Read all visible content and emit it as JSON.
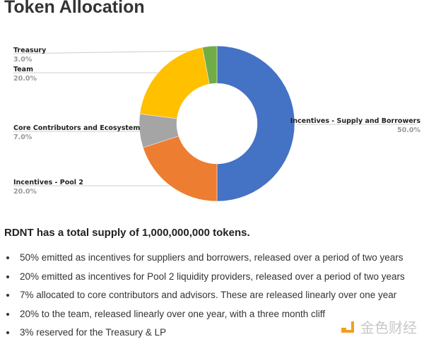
{
  "title": "Token Allocation",
  "chart_data": {
    "type": "pie",
    "variant": "donut",
    "slices": [
      {
        "label": "Incentives - Supply and Borrowers",
        "value": 50.0,
        "display": "50.0%",
        "color": "#4472C4"
      },
      {
        "label": "Incentives - Pool 2",
        "value": 20.0,
        "display": "20.0%",
        "color": "#ED7D31"
      },
      {
        "label": "Core Contributors and Ecosystem",
        "value": 7.0,
        "display": "7.0%",
        "color": "#A5A5A5"
      },
      {
        "label": "Team",
        "value": 20.0,
        "display": "20.0%",
        "color": "#FFC000"
      },
      {
        "label": "Treasury",
        "value": 3.0,
        "display": "3.0%",
        "color": "#70AD47"
      }
    ]
  },
  "supply_text": "RDNT has a total supply of 1,000,000,000 tokens.",
  "bullets": [
    "50% emitted as incentives for suppliers and borrowers, released over a period of two years",
    "20% emitted as incentives for Pool 2 liquidity providers, released over a period of two years",
    "7% allocated to core contributors and advisors. These are released linearly over one year",
    "20% to the team, released linearly over one year, with a three month cliff",
    "3% reserved for the Treasury & LP"
  ],
  "watermark": "金色财经"
}
